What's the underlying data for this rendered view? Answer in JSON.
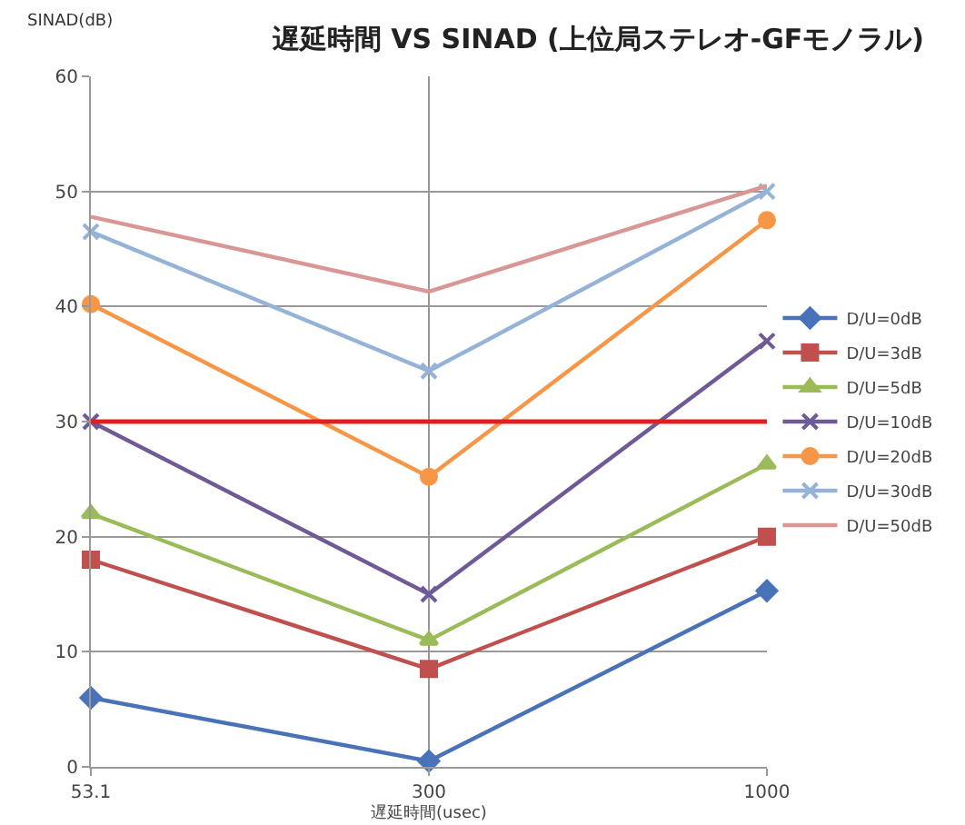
{
  "chart_data": {
    "type": "line",
    "title": "遅延時間 VS SINAD (上位局ステレオ-GFモノラル)",
    "ylabel": "SINAD(dB)",
    "xlabel": "遅延時間(usec)",
    "categories": [
      "53.1",
      "300",
      "1000"
    ],
    "series": [
      {
        "name": "D/U=0dB",
        "color": "#4a72b8",
        "marker": "diamond",
        "values": [
          6,
          0.5,
          15.3
        ]
      },
      {
        "name": "D/U=3dB",
        "color": "#c0504d",
        "marker": "square",
        "values": [
          18,
          8.5,
          20
        ]
      },
      {
        "name": "D/U=5dB",
        "color": "#9bbb59",
        "marker": "triangle",
        "values": [
          22,
          11,
          26.3
        ]
      },
      {
        "name": "D/U=10dB",
        "color": "#6f5a96",
        "marker": "cross",
        "values": [
          30,
          15,
          37
        ]
      },
      {
        "name": "D/U=20dB",
        "color": "#f79646",
        "marker": "circle",
        "values": [
          40.2,
          25.2,
          47.5
        ]
      },
      {
        "name": "D/U=30dB",
        "color": "#95b3d7",
        "marker": "cross",
        "values": [
          46.5,
          34.4,
          50
        ]
      },
      {
        "name": "D/U=50dB",
        "color": "#d99694",
        "marker": "none",
        "values": [
          47.8,
          41.3,
          50.5
        ]
      }
    ],
    "ref_lines": [
      {
        "axis": "y",
        "value": 30,
        "color": "#e02020",
        "line_style": "solid"
      }
    ],
    "ylim": [
      0,
      60
    ],
    "yticks": [
      0,
      10,
      20,
      30,
      40,
      50,
      60
    ],
    "grid": true,
    "legend": "right"
  }
}
